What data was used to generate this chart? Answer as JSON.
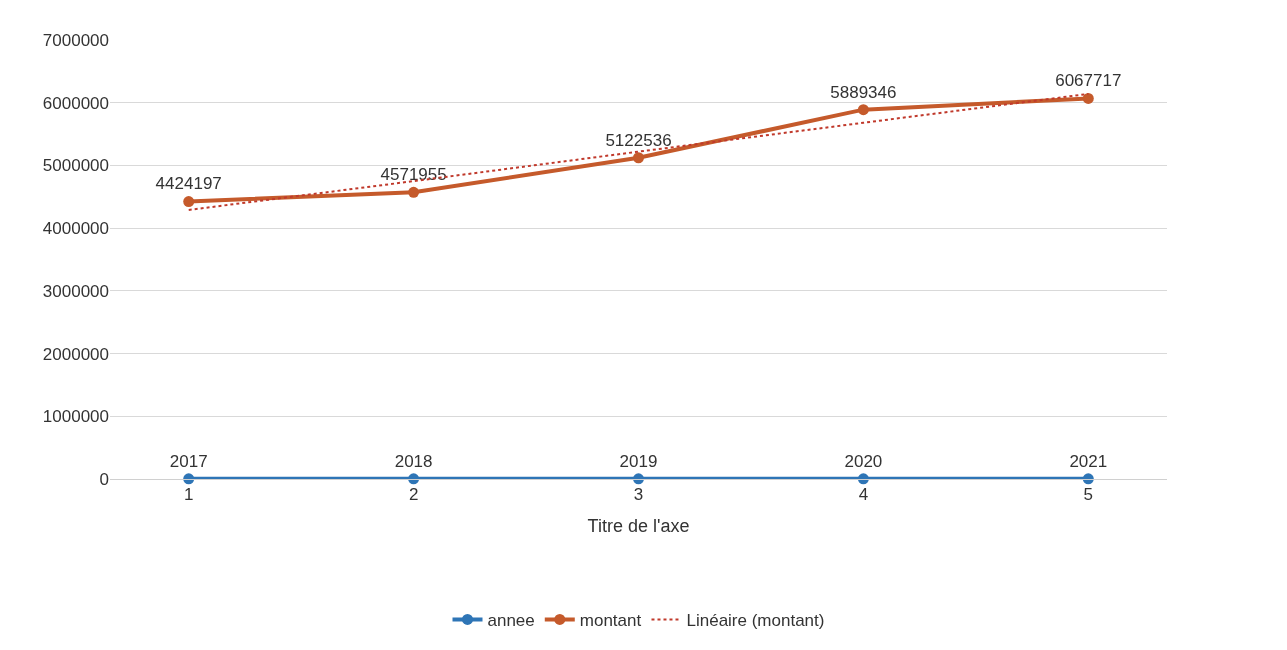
{
  "chart_data": {
    "type": "line",
    "xlabel": "Titre de l'axe",
    "categories": [
      "1",
      "2",
      "3",
      "4",
      "5"
    ],
    "series": [
      {
        "name": "annee",
        "color": "#2e75b6",
        "values": [
          2017,
          2018,
          2019,
          2020,
          2021
        ],
        "marker": "circle",
        "line_style": "solid",
        "data_labels": true
      },
      {
        "name": "montant",
        "color": "#c55a2b",
        "values": [
          4424197,
          4571955,
          5122536,
          5889346,
          6067717
        ],
        "marker": "circle",
        "line_style": "solid",
        "data_labels": true
      },
      {
        "name": "Linéaire (montant)",
        "color": "#c0392b",
        "values": [
          4290000,
          4750000,
          5220000,
          5680000,
          6140000
        ],
        "marker": "none",
        "line_style": "dotted"
      }
    ],
    "ylim": [
      0,
      7000000
    ],
    "yticks": [
      0,
      1000000,
      2000000,
      3000000,
      4000000,
      5000000,
      6000000,
      7000000
    ],
    "grid": "y",
    "legend": "bottom"
  }
}
